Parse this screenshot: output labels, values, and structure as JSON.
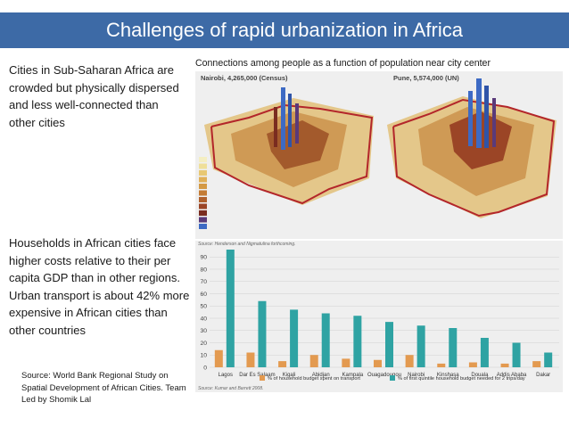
{
  "slide": {
    "title": "Challenges of rapid urbanization in Africa",
    "text1": "Cities in Sub-Saharan Africa are crowded but physically dispersed and less well-connected than other cities",
    "text2": "Households in African cities face higher costs relative to their per capita GDP than in other regions.  Urban transport is about 42% more expensive in African cities than other countries",
    "source": "Source: World Bank Regional Study on Spatial Development of African Cities.  Team Led by Shomik Lal"
  },
  "maps": {
    "caption": "Connections among people as a function of population near city center",
    "map1_title": "Nairobi, 4,265,000 (Census)",
    "map2_title": "Pune, 5,574,000 (UN)",
    "source_note": "Source: Henderson and Nigmatulina forthcoming.",
    "legend_colors": [
      "#f4eec2",
      "#efdf99",
      "#e8c873",
      "#e0b058",
      "#d49943",
      "#c47c35",
      "#b0612d",
      "#9b4526",
      "#7a2c20",
      "#5a3a7a",
      "#3d6ac4"
    ]
  },
  "chart_data": {
    "type": "bar",
    "categories": [
      "Lagos",
      "Dar Es Salaam",
      "Kigali",
      "Abidjan",
      "Kampala",
      "Ouagadougou",
      "Nairobi",
      "Kinshasa",
      "Douala",
      "Addis Ababa",
      "Dakar"
    ],
    "series": [
      {
        "name": "% of household budget spent on transport",
        "color": "#e39a50",
        "values": [
          14,
          12,
          5,
          10,
          7,
          6,
          10,
          3,
          4,
          3,
          5
        ]
      },
      {
        "name": "% of first quintile household budget needed for 2 trips/day",
        "color": "#2fa3a3",
        "values": [
          96,
          54,
          47,
          44,
          42,
          37,
          34,
          32,
          24,
          20,
          12
        ]
      }
    ],
    "yticks": [
      0,
      10,
      20,
      30,
      40,
      50,
      60,
      70,
      80,
      90
    ],
    "ylim": [
      0,
      96
    ],
    "grid": true,
    "legend": "bottom",
    "source_note": "Source: Kumar and Barrett 2008."
  }
}
